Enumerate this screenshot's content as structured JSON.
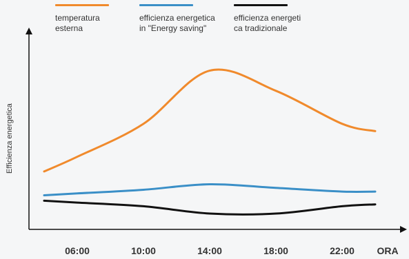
{
  "chart_data": {
    "type": "line",
    "title": "",
    "xlabel": "ORA",
    "ylabel": "Efficienza energetica",
    "categories": [
      "06:00",
      "10:00",
      "14:00",
      "18:00",
      "22:00"
    ],
    "series": [
      {
        "name": "temperatura esterna",
        "color": "#f08a2c",
        "x": [
          "04:00",
          "06:00",
          "10:00",
          "14:00",
          "18:00",
          "22:00",
          "24:00"
        ],
        "values": [
          0.29,
          0.37,
          0.55,
          0.84,
          0.73,
          0.55,
          0.51
        ]
      },
      {
        "name": "efficienza energetica in \"Energy saving\"",
        "color": "#3a8fc7",
        "x": [
          "04:00",
          "06:00",
          "10:00",
          "14:00",
          "18:00",
          "22:00",
          "24:00"
        ],
        "values": [
          0.16,
          0.17,
          0.19,
          0.22,
          0.2,
          0.18,
          0.18
        ]
      },
      {
        "name": "efficienza energetica tradizionale",
        "color": "#111111",
        "x": [
          "04:00",
          "06:00",
          "10:00",
          "14:00",
          "18:00",
          "22:00",
          "24:00"
        ],
        "values": [
          0.13,
          0.12,
          0.1,
          0.06,
          0.06,
          0.1,
          0.11
        ]
      }
    ],
    "legend": "top"
  }
}
